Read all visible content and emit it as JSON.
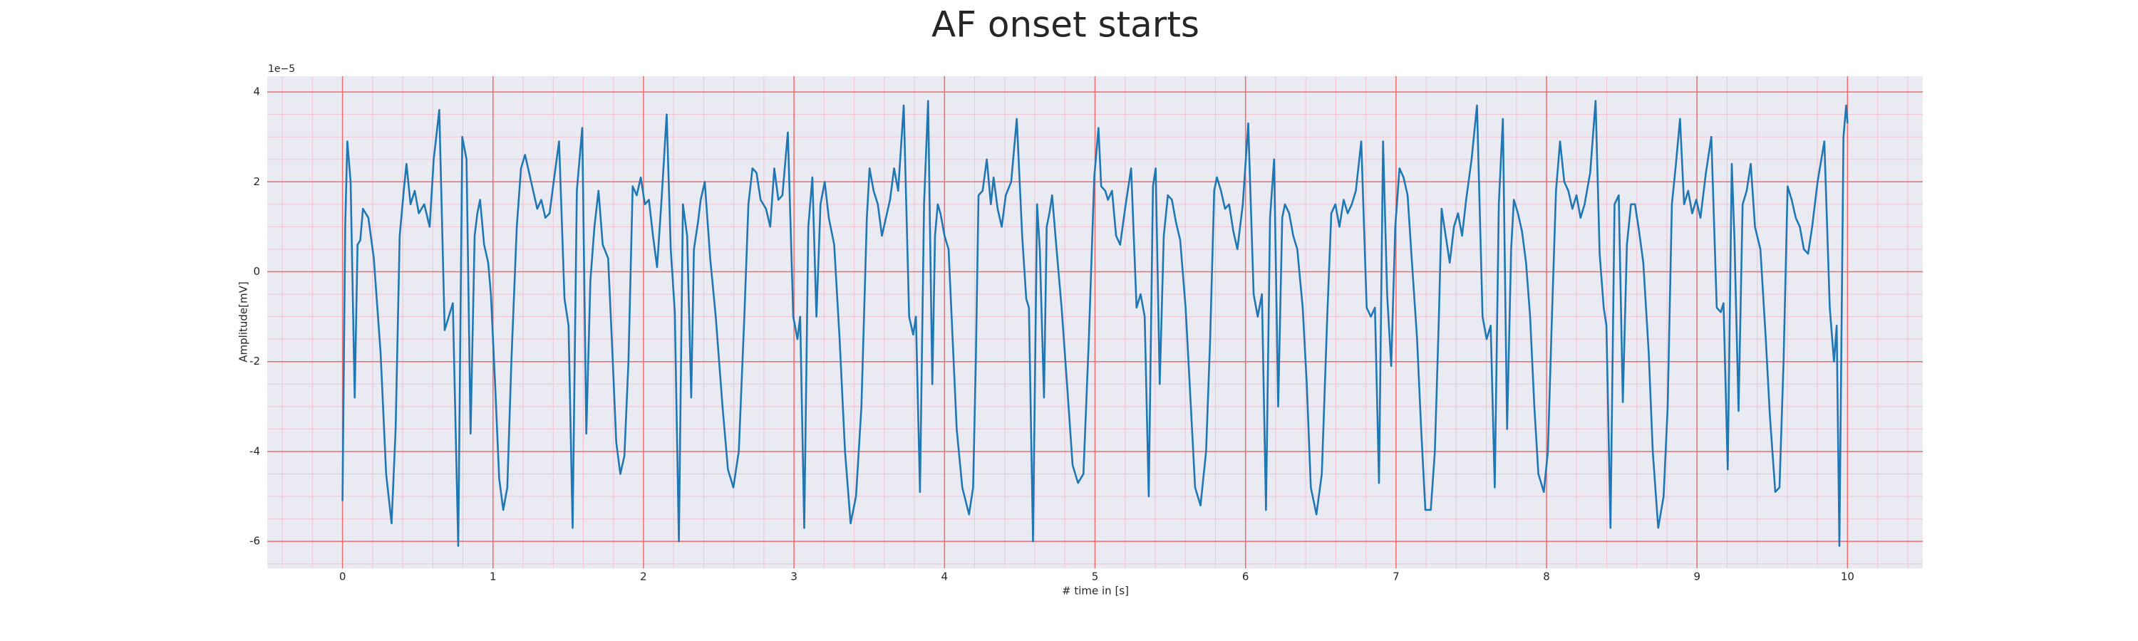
{
  "chart_data": {
    "type": "line",
    "title": "AF onset starts",
    "xlabel": "# time in [s]",
    "ylabel": "Amplitude[mV]",
    "y_offset_label": "1e−5",
    "color": "#1f77b4",
    "background": "#eaeaf2",
    "grid": true,
    "grid_color": "#f26b6b",
    "minor_grid_color": "#f1c4d3",
    "xlim": [
      -0.5,
      10.5
    ],
    "ylim": [
      -6.6,
      4.35
    ],
    "xticks": [
      0,
      1,
      2,
      3,
      4,
      5,
      6,
      7,
      8,
      9,
      10
    ],
    "yticks": [
      -6,
      -4,
      -2,
      0,
      2,
      4
    ],
    "xminorticks": [
      -0.4,
      -0.2,
      0.2,
      0.4,
      0.6,
      0.8,
      1.2,
      1.4,
      1.6,
      1.8,
      2.2,
      2.4,
      2.6,
      2.8,
      3.2,
      3.4,
      3.6,
      3.8,
      4.2,
      4.4,
      4.6,
      4.8,
      5.2,
      5.4,
      5.6,
      5.8,
      6.2,
      6.4,
      6.6,
      6.8,
      7.2,
      7.4,
      7.6,
      7.8,
      8.2,
      8.4,
      8.6,
      8.8,
      9.2,
      9.4,
      9.6,
      9.8,
      10.2,
      10.4
    ],
    "yminorticks": [
      -6.5,
      -5.5,
      -5,
      -4.5,
      -3.5,
      -3,
      -2.5,
      -1.5,
      -1,
      -0.5,
      0.5,
      1,
      1.5,
      2.5,
      3,
      3.5
    ],
    "x": [
      0,
      0.018,
      0.032,
      0.054,
      0.081,
      0.1,
      0.118,
      0.136,
      0.172,
      0.208,
      0.253,
      0.29,
      0.326,
      0.353,
      0.38,
      0.407,
      0.425,
      0.452,
      0.48,
      0.507,
      0.543,
      0.579,
      0.606,
      0.643,
      0.679,
      0.706,
      0.733,
      0.769,
      0.796,
      0.824,
      0.851,
      0.878,
      0.896,
      0.914,
      0.941,
      0.968,
      0.986,
      1.014,
      1.041,
      1.068,
      1.095,
      1.122,
      1.158,
      1.186,
      1.213,
      1.24,
      1.267,
      1.294,
      1.321,
      1.348,
      1.376,
      1.403,
      1.439,
      1.475,
      1.502,
      1.529,
      1.557,
      1.593,
      1.62,
      1.647,
      1.674,
      1.701,
      1.729,
      1.765,
      1.792,
      1.819,
      1.846,
      1.873,
      1.9,
      1.928,
      1.955,
      1.982,
      2.009,
      2.036,
      2.063,
      2.09,
      2.118,
      2.154,
      2.181,
      2.208,
      2.235,
      2.262,
      2.29,
      2.317,
      2.335,
      2.362,
      2.38,
      2.407,
      2.443,
      2.48,
      2.525,
      2.561,
      2.597,
      2.633,
      2.67,
      2.697,
      2.724,
      2.751,
      2.778,
      2.814,
      2.842,
      2.869,
      2.896,
      2.923,
      2.959,
      2.995,
      3.023,
      3.041,
      3.068,
      3.095,
      3.122,
      3.149,
      3.176,
      3.204,
      3.231,
      3.267,
      3.303,
      3.339,
      3.376,
      3.412,
      3.448,
      3.484,
      3.502,
      3.529,
      3.557,
      3.584,
      3.611,
      3.638,
      3.665,
      3.692,
      3.729,
      3.765,
      3.792,
      3.81,
      3.837,
      3.864,
      3.891,
      3.919,
      3.937,
      3.955,
      3.973,
      4.0,
      4.027,
      4.054,
      4.081,
      4.118,
      4.163,
      4.19,
      4.208,
      4.226,
      4.253,
      4.281,
      4.308,
      4.326,
      4.353,
      4.38,
      4.407,
      4.443,
      4.48,
      4.516,
      4.543,
      4.561,
      4.588,
      4.615,
      4.633,
      4.661,
      4.679,
      4.697,
      4.715,
      4.742,
      4.778,
      4.814,
      4.851,
      4.887,
      4.923,
      4.959,
      4.995,
      5.023,
      5.041,
      5.068,
      5.086,
      5.113,
      5.14,
      5.167,
      5.204,
      5.24,
      5.276,
      5.303,
      5.33,
      5.357,
      5.385,
      5.403,
      5.43,
      5.457,
      5.484,
      5.511,
      5.538,
      5.566,
      5.602,
      5.629,
      5.665,
      5.701,
      5.738,
      5.765,
      5.792,
      5.81,
      5.837,
      5.864,
      5.891,
      5.919,
      5.946,
      5.982,
      6.018,
      6.054,
      6.081,
      6.109,
      6.136,
      6.163,
      6.19,
      6.217,
      6.244,
      6.262,
      6.29,
      6.317,
      6.344,
      6.38,
      6.407,
      6.434,
      6.471,
      6.507,
      6.543,
      6.57,
      6.597,
      6.624,
      6.652,
      6.679,
      6.706,
      6.733,
      6.769,
      6.805,
      6.833,
      6.86,
      6.887,
      6.914,
      6.941,
      6.968,
      6.995,
      7.023,
      7.05,
      7.077,
      7.104,
      7.14,
      7.167,
      7.195,
      7.231,
      7.258,
      7.285,
      7.303,
      7.33,
      7.357,
      7.385,
      7.412,
      7.439,
      7.466,
      7.502,
      7.538,
      7.575,
      7.602,
      7.629,
      7.656,
      7.683,
      7.71,
      7.738,
      7.765,
      7.783,
      7.81,
      7.837,
      7.864,
      7.891,
      7.919,
      7.946,
      7.982,
      8.009,
      8.036,
      8.063,
      8.09,
      8.118,
      8.145,
      8.172,
      8.199,
      8.226,
      8.253,
      8.29,
      8.326,
      8.353,
      8.38,
      8.398,
      8.425,
      8.452,
      8.48,
      8.507,
      8.534,
      8.561,
      8.588,
      8.615,
      8.643,
      8.679,
      8.706,
      8.742,
      8.778,
      8.805,
      8.833,
      8.86,
      8.887,
      8.914,
      8.941,
      8.968,
      8.995,
      9.023,
      9.059,
      9.095,
      9.131,
      9.158,
      9.176,
      9.204,
      9.231,
      9.249,
      9.276,
      9.303,
      9.33,
      9.357,
      9.385,
      9.421,
      9.457,
      9.484,
      9.52,
      9.548,
      9.575,
      9.602,
      9.629,
      9.656,
      9.683,
      9.71,
      9.738,
      9.765,
      9.801,
      9.846,
      9.882,
      9.91,
      9.928,
      9.946,
      9.973,
      9.991,
      10.0
    ],
    "values": [
      -5.1,
      1.0,
      2.9,
      2.0,
      -2.8,
      0.6,
      0.7,
      1.4,
      1.2,
      0.3,
      -1.8,
      -4.5,
      -5.6,
      -3.5,
      0.8,
      1.8,
      2.4,
      1.5,
      1.8,
      1.3,
      1.5,
      1.0,
      2.5,
      3.6,
      -1.3,
      -1.0,
      -0.7,
      -6.1,
      3.0,
      2.5,
      -3.6,
      0.8,
      1.3,
      1.6,
      0.6,
      0.2,
      -0.5,
      -2.5,
      -4.6,
      -5.3,
      -4.8,
      -2.0,
      1.0,
      2.3,
      2.6,
      2.2,
      1.8,
      1.4,
      1.6,
      1.2,
      1.3,
      2.0,
      2.9,
      -0.6,
      -1.2,
      -5.7,
      1.8,
      3.2,
      -3.6,
      -0.2,
      1.0,
      1.8,
      0.6,
      0.3,
      -1.7,
      -3.8,
      -4.5,
      -4.1,
      -2.0,
      1.9,
      1.7,
      2.1,
      1.5,
      1.6,
      0.8,
      0.1,
      1.5,
      3.5,
      0.5,
      -0.9,
      -6.0,
      1.5,
      0.8,
      -2.8,
      0.5,
      1.1,
      1.6,
      2.0,
      0.3,
      -1.0,
      -3.0,
      -4.4,
      -4.8,
      -4.0,
      -1.0,
      1.5,
      2.3,
      2.2,
      1.6,
      1.4,
      1.0,
      2.3,
      1.6,
      1.7,
      3.1,
      -1.0,
      -1.5,
      -1.0,
      -5.7,
      1.0,
      2.1,
      -1.0,
      1.5,
      2.0,
      1.2,
      0.6,
      -1.5,
      -4.0,
      -5.6,
      -5.0,
      -3.0,
      1.2,
      2.3,
      1.8,
      1.5,
      0.8,
      1.2,
      1.6,
      2.3,
      1.8,
      3.7,
      -1.0,
      -1.4,
      -1.0,
      -4.9,
      1.5,
      3.8,
      -2.5,
      0.8,
      1.5,
      1.3,
      0.8,
      0.5,
      -1.5,
      -3.5,
      -4.8,
      -5.4,
      -4.8,
      -2.0,
      1.7,
      1.8,
      2.5,
      1.5,
      2.1,
      1.4,
      1.0,
      1.7,
      2.0,
      3.4,
      0.8,
      -0.6,
      -0.8,
      -6.0,
      1.5,
      0.5,
      -2.8,
      1.0,
      1.3,
      1.7,
      0.6,
      -0.8,
      -2.5,
      -4.3,
      -4.7,
      -4.5,
      -1.5,
      2.1,
      3.2,
      1.9,
      1.8,
      1.6,
      1.8,
      0.8,
      0.6,
      1.5,
      2.3,
      -0.8,
      -0.5,
      -1.0,
      -5.0,
      1.9,
      2.3,
      -2.5,
      0.8,
      1.7,
      1.6,
      1.1,
      0.7,
      -0.8,
      -2.5,
      -4.8,
      -5.2,
      -4.0,
      -1.5,
      1.8,
      2.1,
      1.8,
      1.4,
      1.5,
      0.9,
      0.5,
      1.5,
      3.3,
      -0.5,
      -1.0,
      -0.5,
      -5.3,
      1.2,
      2.5,
      -3.0,
      1.2,
      1.5,
      1.3,
      0.8,
      0.5,
      -0.8,
      -2.5,
      -4.8,
      -5.4,
      -4.5,
      -1.0,
      1.3,
      1.5,
      1.0,
      1.6,
      1.3,
      1.5,
      1.8,
      2.9,
      -0.8,
      -1.0,
      -0.8,
      -4.7,
      2.9,
      -0.5,
      -2.1,
      1.0,
      2.3,
      2.1,
      1.7,
      0.3,
      -1.5,
      -3.5,
      -5.3,
      -5.3,
      -4.0,
      -1.0,
      1.4,
      0.8,
      0.2,
      1.0,
      1.3,
      0.8,
      1.6,
      2.5,
      3.7,
      -1.0,
      -1.5,
      -1.2,
      -4.8,
      1.5,
      3.4,
      -3.5,
      0.5,
      1.6,
      1.3,
      0.9,
      0.2,
      -1.0,
      -3.0,
      -4.5,
      -4.9,
      -4.0,
      -1.0,
      1.8,
      2.9,
      2.0,
      1.8,
      1.4,
      1.7,
      1.2,
      1.5,
      2.2,
      3.8,
      0.4,
      -0.8,
      -1.2,
      -5.7,
      1.5,
      1.7,
      -2.9,
      0.6,
      1.5,
      1.5,
      0.9,
      0.2,
      -1.8,
      -4.0,
      -5.7,
      -5.0,
      -3.0,
      1.5,
      2.4,
      3.4,
      1.5,
      1.8,
      1.3,
      1.6,
      1.2,
      2.2,
      3.0,
      -0.8,
      -0.9,
      -0.7,
      -4.4,
      2.4,
      0.7,
      -3.1,
      1.5,
      1.8,
      2.4,
      1.0,
      0.5,
      -1.5,
      -3.2,
      -4.9,
      -4.8,
      -2.0,
      1.9,
      1.6,
      1.2,
      1.0,
      0.5,
      0.4,
      1.0,
      2.0,
      2.9,
      -0.8,
      -2.0,
      -1.2,
      -6.1,
      3.0,
      3.7,
      3.3
    ]
  }
}
